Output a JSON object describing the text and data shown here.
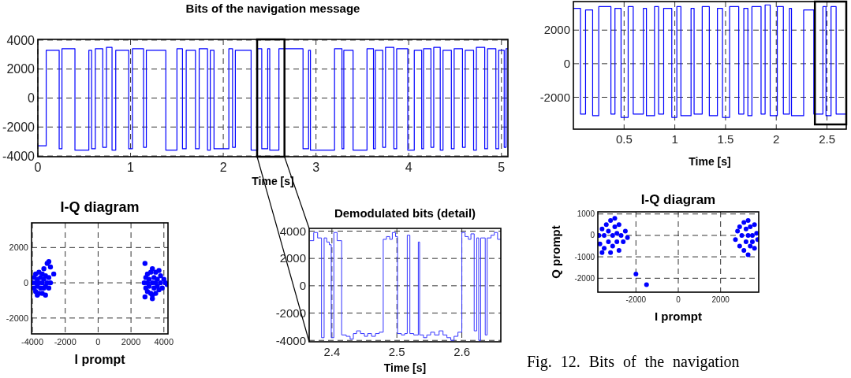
{
  "chart_data": [
    {
      "type": "step",
      "title": "Bits of the navigation message",
      "xlabel": "Time [s]",
      "xlim": [
        0,
        5.07
      ],
      "ylim": [
        -4050,
        4050
      ],
      "xticks": [
        0,
        1,
        2,
        3,
        4,
        5
      ],
      "yticks": [
        -4000,
        -2000,
        0,
        2000,
        4000
      ],
      "grid": true,
      "series": [
        {
          "color": "#0000ff",
          "x": [
            0,
            0.09,
            0.23,
            0.26,
            0.4,
            0.55,
            0.58,
            0.62,
            0.7,
            0.74,
            0.8,
            0.84,
            0.98,
            1.02,
            1.14,
            1.17,
            1.38,
            1.5,
            1.56,
            1.6,
            1.7,
            1.74,
            1.83,
            1.86,
            1.9,
            2.06,
            2.1,
            2.13,
            2.3,
            2.37,
            2.415,
            2.479,
            2.501,
            2.6,
            2.86,
            2.92,
            2.94,
            3.2,
            3.28,
            3.3,
            3.4,
            3.55,
            3.62,
            3.64,
            3.72,
            3.75,
            3.84,
            3.87,
            3.99,
            4.06,
            4.14,
            4.16,
            4.24,
            4.27,
            4.34,
            4.37,
            4.46,
            4.49,
            4.58,
            4.61,
            4.7,
            4.73,
            4.82,
            4.85,
            4.94,
            4.97,
            5.03,
            5.05,
            5.07
          ],
          "values": [
            -3300,
            3300,
            -3500,
            3400,
            -3600,
            3300,
            -3500,
            3400,
            -3400,
            3500,
            -3600,
            3300,
            -3500,
            3400,
            -3400,
            3300,
            -3600,
            3400,
            -3500,
            3300,
            -3500,
            3400,
            -3600,
            3300,
            -3500,
            3400,
            -3400,
            3300,
            -3600,
            3400,
            -3500,
            3400,
            -3600,
            3400,
            -3500,
            3300,
            -3600,
            3400,
            -3500,
            3300,
            -3600,
            3400,
            -3500,
            3300,
            -3400,
            3500,
            -3500,
            3400,
            -3600,
            3300,
            -3500,
            3400,
            -3400,
            3500,
            -3600,
            3300,
            -3500,
            3400,
            -3400,
            3300,
            -3600,
            3500,
            -3500,
            3400,
            -3500,
            3300,
            -3400,
            3400,
            3400
          ]
        }
      ]
    },
    {
      "type": "step",
      "xlabel": "Time [s]",
      "xlim": [
        0,
        2.69
      ],
      "ylim": [
        -3900,
        3700
      ],
      "xticks": [
        0.5,
        1,
        1.5,
        2,
        2.5
      ],
      "yticks": [
        -2000,
        0,
        2000
      ],
      "grid": true,
      "series": [
        {
          "color": "#0000ff",
          "x": [
            0,
            0.07,
            0.12,
            0.19,
            0.25,
            0.37,
            0.41,
            0.47,
            0.54,
            0.59,
            0.69,
            0.72,
            0.8,
            0.84,
            0.89,
            0.97,
            1.02,
            1.06,
            1.16,
            1.19,
            1.27,
            1.34,
            1.42,
            1.47,
            1.54,
            1.63,
            1.68,
            1.72,
            1.76,
            1.85,
            1.89,
            1.94,
            2.01,
            2.07,
            2.13,
            2.15,
            2.27,
            2.37,
            2.46,
            2.49,
            2.54,
            2.59,
            2.69
          ],
          "values": [
            3300,
            -3000,
            3200,
            -3100,
            3400,
            -3000,
            3300,
            -3200,
            3400,
            -3000,
            3300,
            -3100,
            3400,
            -3000,
            3300,
            -3200,
            3400,
            -3100,
            3300,
            -3000,
            3400,
            -3100,
            3300,
            -3200,
            3400,
            -3000,
            3300,
            -3100,
            3400,
            -3000,
            3500,
            -3100,
            3400,
            -3000,
            3300,
            -3100,
            3200,
            -3000,
            3400,
            -3100,
            3400,
            -3000,
            -3000
          ]
        }
      ]
    },
    {
      "type": "scatter",
      "title": "I-Q diagram",
      "xlabel": "I prompt",
      "xlim": [
        -4050,
        4250
      ],
      "ylim": [
        -2900,
        3400
      ],
      "xticks": [
        -4000,
        -2000,
        0,
        2000,
        4000
      ],
      "yticks": [
        -2000,
        0,
        2000
      ],
      "grid": true,
      "marker": "circle",
      "series": [
        {
          "color": "#0000ff",
          "x": [
            -4000,
            -3900,
            -3900,
            -3800,
            -3800,
            -3800,
            -3700,
            -3700,
            -3600,
            -3600,
            -3600,
            -3500,
            -3500,
            -3400,
            -3400,
            -3400,
            -3300,
            -3300,
            -3200,
            -3200,
            -3100,
            -3000,
            -3000,
            -3700,
            -3200,
            -2900,
            -3100,
            -3000,
            -2900,
            -2700,
            -3300,
            2800,
            2900,
            2900,
            3000,
            3000,
            3000,
            3100,
            3100,
            3200,
            3200,
            3300,
            3300,
            3300,
            3400,
            3400,
            3500,
            3500,
            3500,
            3600,
            3600,
            3700,
            3700,
            3800,
            3800,
            3900,
            4000,
            4100,
            4200,
            2850,
            2850,
            3300
          ],
          "values": [
            0,
            300,
            -300,
            500,
            0,
            -500,
            200,
            -200,
            600,
            0,
            -600,
            300,
            -300,
            500,
            0,
            -600,
            200,
            -300,
            400,
            -200,
            0,
            300,
            -300,
            -700,
            -700,
            0,
            1100,
            1200,
            900,
            500,
            800,
            0,
            300,
            -300,
            500,
            0,
            -500,
            200,
            -200,
            600,
            -600,
            0,
            800,
            -700,
            300,
            -300,
            600,
            0,
            -600,
            200,
            -200,
            700,
            -400,
            0,
            400,
            -300,
            200,
            0,
            -100,
            1100,
            -800,
            -900
          ]
        }
      ]
    },
    {
      "type": "step",
      "title": "Demodulated bits (detail)",
      "xlabel": "Time [s]",
      "xlim": [
        2.365,
        2.66
      ],
      "ylim": [
        -4100,
        4200
      ],
      "xticks": [
        2.4,
        2.5,
        2.6
      ],
      "yticks": [
        -4000,
        -2000,
        0,
        2000,
        4000
      ],
      "grid": true,
      "series": [
        {
          "color": "#3333ff",
          "x": [
            2.366,
            2.372,
            2.378,
            2.384,
            2.388,
            2.392,
            2.396,
            2.399,
            2.403,
            2.408,
            2.415,
            2.422,
            2.428,
            2.433,
            2.438,
            2.444,
            2.45,
            2.455,
            2.461,
            2.467,
            2.473,
            2.479,
            2.484,
            2.489,
            2.493,
            2.498,
            2.501,
            2.507,
            2.512,
            2.516,
            2.52,
            2.526,
            2.533,
            2.535,
            2.541,
            2.546,
            2.552,
            2.558,
            2.565,
            2.571,
            2.577,
            2.583,
            2.588,
            2.594,
            2.6,
            2.605,
            2.61,
            2.614,
            2.619,
            2.623,
            2.626,
            2.629,
            2.636,
            2.639,
            2.645,
            2.65,
            2.655,
            2.66
          ],
          "values": [
            3300,
            3900,
            3500,
            -3800,
            3500,
            3200,
            3000,
            -3800,
            3900,
            3300,
            -3600,
            -3700,
            -3900,
            -3500,
            -3300,
            -3500,
            -3700,
            -3500,
            -3700,
            -3500,
            -3400,
            3400,
            3600,
            3400,
            3900,
            3600,
            -3500,
            -3600,
            -3500,
            3700,
            -3500,
            -3600,
            3200,
            -3600,
            -3800,
            -3600,
            -3400,
            -3600,
            -3300,
            -3600,
            -3800,
            -4000,
            -3700,
            -3400,
            3900,
            3600,
            3400,
            3800,
            -3300,
            3500,
            -4000,
            3500,
            -3600,
            3500,
            3700,
            3900,
            3400,
            3400
          ]
        }
      ]
    },
    {
      "type": "scatter",
      "title": "I-Q diagram",
      "xlabel": "I prompt",
      "ylabel": "Q prompt",
      "xlim": [
        -3800,
        3800
      ],
      "ylim": [
        -2650,
        1100
      ],
      "xticks": [
        -2000,
        0,
        2000
      ],
      "yticks": [
        -2000,
        -1000,
        0,
        1000
      ],
      "grid": true,
      "marker": "circle",
      "annotations": [
        "Fig. 12. Bits of the navigation"
      ],
      "series": [
        {
          "color": "#0000ff",
          "x": [
            -3750,
            -3700,
            -3600,
            -3500,
            -3500,
            -3400,
            -3300,
            -3300,
            -3200,
            -3200,
            -3100,
            -3100,
            -3000,
            -2900,
            -2900,
            -2800,
            -2800,
            -2700,
            -2600,
            -2500,
            -2400,
            -3000,
            -3600,
            -2000,
            -1500,
            2700,
            2800,
            2900,
            2900,
            3000,
            3100,
            3100,
            3200,
            3200,
            3300,
            3300,
            3400,
            3400,
            3500,
            3500,
            3600,
            3600,
            3700,
            3750,
            3300
          ],
          "values": [
            0,
            -400,
            300,
            -600,
            0,
            500,
            -300,
            200,
            -800,
            700,
            0,
            -500,
            400,
            -300,
            100,
            -700,
            500,
            0,
            -300,
            200,
            -100,
            800,
            -800,
            -1800,
            -2300,
            -200,
            200,
            -500,
            400,
            0,
            -700,
            600,
            -300,
            300,
            0,
            700,
            -500,
            400,
            0,
            -300,
            500,
            -600,
            100,
            -200,
            -900
          ]
        }
      ]
    }
  ]
}
